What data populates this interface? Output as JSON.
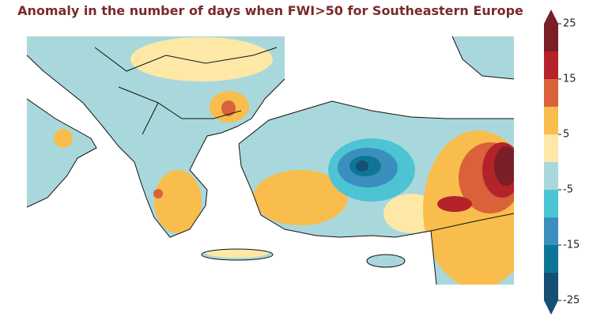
{
  "title": "Anomaly in the number of days when FWI>50 for Southeastern Europe",
  "colorbar": {
    "levels": [
      -25,
      -20,
      -15,
      -10,
      -5,
      0,
      5,
      10,
      15,
      20,
      25
    ],
    "colors": [
      "#154f73",
      "#0d7696",
      "#3a8fbd",
      "#4cc4d4",
      "#a9d8dc",
      "#fde8a6",
      "#f8bd4d",
      "#d9623a",
      "#b5232a",
      "#7a1e27"
    ],
    "ticks": [
      -25,
      -15,
      -5,
      5,
      15,
      25
    ],
    "extend": "both"
  }
}
